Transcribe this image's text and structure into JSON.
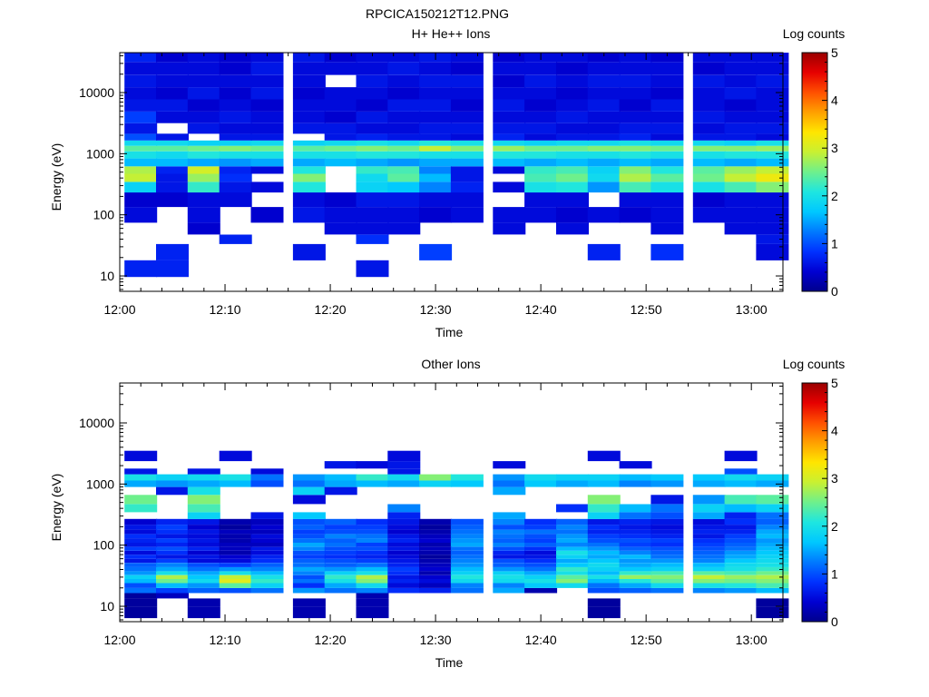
{
  "figure_title": "RPCICA150212T12.PNG",
  "colormap": [
    "#00008c",
    "#0000d2",
    "#0032ff",
    "#007aff",
    "#00c8ff",
    "#1ee6e0",
    "#6ef08c",
    "#c8f032",
    "#ffe600",
    "#ffa000",
    "#ff5000",
    "#e60000",
    "#9a0000"
  ],
  "chart_data": [
    {
      "type": "heatmap",
      "title": "H+ He++ Ions",
      "xlabel": "Time",
      "ylabel": "Energy (eV)",
      "ylog": true,
      "ylim": [
        5.6,
        45000
      ],
      "xlim": [
        "12:00",
        "13:03"
      ],
      "x_ticks": [
        "12:00",
        "12:10",
        "12:20",
        "12:30",
        "12:40",
        "12:50",
        "13:00"
      ],
      "y_ticks": [
        "10",
        "100",
        "1000",
        "10000"
      ],
      "colorbar": {
        "label": "Log counts",
        "range": [
          0,
          5
        ],
        "ticks": [
          "0",
          "1",
          "2",
          "3",
          "4",
          "5"
        ]
      },
      "grid": false,
      "time_columns": [
        "12:02",
        "12:05",
        "12:08",
        "12:11",
        "12:14",
        "12:18",
        "12:21",
        "12:24",
        "12:27",
        "12:30",
        "12:33",
        "12:37",
        "12:40",
        "12:43",
        "12:46",
        "12:49",
        "12:52",
        "12:56",
        "12:59",
        "13:02"
      ],
      "energy_bins_eV": [
        12,
        27,
        41,
        55,
        100,
        180,
        300,
        400,
        550,
        700,
        1000,
        1200,
        1500,
        1800,
        2500,
        4000,
        6000,
        10000,
        15000,
        25000,
        40000
      ],
      "log_counts": [
        [
          0.7,
          0,
          0,
          0,
          0.5,
          0.4,
          1.8,
          2.9,
          2.8,
          1.6,
          2.0,
          2.4,
          1.9,
          1.0,
          0.6,
          0.9,
          0.6,
          0.5,
          0.6,
          0.5,
          0.7
        ],
        [
          0.7,
          0.7,
          0,
          0,
          0,
          0.4,
          0.6,
          0.6,
          0.7,
          1.6,
          1.9,
          2.4,
          1.9,
          0.6,
          0,
          0.5,
          0.6,
          0.4,
          0.5,
          0.5,
          0.4
        ],
        [
          0,
          0,
          0,
          0.4,
          0.5,
          0.5,
          2.2,
          2.7,
          3.0,
          1.5,
          2.1,
          2.5,
          1.8,
          0,
          0.6,
          0.5,
          0.4,
          0.6,
          0.5,
          0.5,
          0.5
        ],
        [
          0,
          0,
          0.7,
          0,
          0,
          0.5,
          0.6,
          0.8,
          0.7,
          1.4,
          2.0,
          2.6,
          1.8,
          0.6,
          0.5,
          0.6,
          0.5,
          0.4,
          0.5,
          0.4,
          0.4
        ],
        [
          0,
          0,
          0,
          0,
          0.4,
          0,
          0.5,
          0,
          0.5,
          1.5,
          2.0,
          2.5,
          1.9,
          0.6,
          0.5,
          0.5,
          0.4,
          0.6,
          0.5,
          0.6,
          0.5
        ],
        [
          0,
          0.6,
          0,
          0,
          0.6,
          0.5,
          2.1,
          2.6,
          2.1,
          1.5,
          2.0,
          2.4,
          1.8,
          0,
          0.6,
          0.5,
          0.5,
          0.4,
          0.5,
          0.5,
          0.6
        ],
        [
          0,
          0,
          0,
          0.5,
          0.5,
          0.4,
          0,
          0,
          0,
          1.6,
          2.0,
          2.5,
          1.9,
          0.6,
          0.6,
          0.4,
          0.5,
          0.5,
          0,
          0.5,
          0.4
        ],
        [
          0.6,
          0,
          0.8,
          0.5,
          0.5,
          0.6,
          1.8,
          1.9,
          2.2,
          1.5,
          2.1,
          2.6,
          2.0,
          0.7,
          0.5,
          0.6,
          0.4,
          0.5,
          0.6,
          0.5,
          0.5
        ],
        [
          0,
          0,
          0,
          0.5,
          0.5,
          0.6,
          1.7,
          2.4,
          2.3,
          1.4,
          2.1,
          2.5,
          1.9,
          0.6,
          0.5,
          0.5,
          0.6,
          0.4,
          0.5,
          0.6,
          0.5
        ],
        [
          0,
          0.9,
          0,
          0,
          0.4,
          0.5,
          1.3,
          1.6,
          1.3,
          1.5,
          2.0,
          2.9,
          2.1,
          0.6,
          0.6,
          0.5,
          0.6,
          0.5,
          0.6,
          0.5,
          0.6
        ],
        [
          0,
          0,
          0,
          0,
          0.5,
          0.5,
          0.7,
          0.6,
          0.6,
          1.5,
          2.0,
          2.6,
          2.0,
          0.5,
          0.6,
          0.5,
          0.4,
          0.5,
          0.6,
          0.4,
          0.5
        ],
        [
          0,
          0,
          0,
          0.5,
          0.5,
          0,
          0.5,
          0,
          0.5,
          1.6,
          2.1,
          2.7,
          1.9,
          0.7,
          0.6,
          0.5,
          0.6,
          0.5,
          0.4,
          0.5,
          0.4
        ],
        [
          0,
          0,
          0,
          0,
          0.5,
          0.5,
          2.0,
          2.3,
          2.2,
          1.5,
          2.1,
          2.5,
          1.8,
          0.5,
          0.6,
          0.5,
          0.4,
          0.5,
          0.6,
          0.5,
          0.5
        ],
        [
          0,
          0,
          0,
          0.5,
          0.4,
          0.5,
          2.1,
          2.5,
          2.3,
          1.6,
          2.0,
          2.5,
          1.9,
          0.6,
          0.5,
          0.6,
          0.5,
          0.4,
          0.5,
          0.4,
          0.5
        ],
        [
          0,
          0.7,
          0,
          0,
          0.5,
          0,
          1.4,
          1.9,
          1.8,
          1.5,
          2.0,
          2.6,
          1.9,
          0.6,
          0.5,
          0.5,
          0.6,
          0.5,
          0.6,
          0.5,
          0.4
        ],
        [
          0,
          0,
          0,
          0,
          0.4,
          0.5,
          2.3,
          2.8,
          2.6,
          1.6,
          2.1,
          2.6,
          2.0,
          0.7,
          0.6,
          0.5,
          0.4,
          0.5,
          0.6,
          0.5,
          0.5
        ],
        [
          0,
          0.8,
          0,
          0.5,
          0.5,
          0.5,
          2.0,
          2.4,
          2.1,
          1.5,
          2.0,
          2.5,
          1.9,
          0.5,
          0.6,
          0.5,
          0.6,
          0.4,
          0.5,
          0.5,
          0.4
        ],
        [
          0,
          0,
          0,
          0,
          0.5,
          0.4,
          2.0,
          2.5,
          2.4,
          1.6,
          2.0,
          2.6,
          1.9,
          0.6,
          0.5,
          0.6,
          0.5,
          0.5,
          0.6,
          0.4,
          0.5
        ],
        [
          0,
          0,
          0,
          0.5,
          0.5,
          0.5,
          2.3,
          2.9,
          2.7,
          1.5,
          2.1,
          2.6,
          1.8,
          0.6,
          0.6,
          0.5,
          0.4,
          0.6,
          0.5,
          0.5,
          0.5
        ],
        [
          0,
          0.5,
          0.6,
          0.5,
          0.5,
          0.5,
          2.6,
          3.2,
          2.9,
          1.6,
          2.1,
          2.7,
          2.0,
          0.5,
          0.6,
          0.5,
          0.5,
          0.5,
          0.6,
          0.5,
          0.5
        ]
      ]
    },
    {
      "type": "heatmap",
      "title": "Other Ions",
      "xlabel": "Time",
      "ylabel": "Energy (eV)",
      "ylog": true,
      "ylim": [
        5.6,
        45000
      ],
      "xlim": [
        "12:00",
        "13:03"
      ],
      "x_ticks": [
        "12:00",
        "12:10",
        "12:20",
        "12:30",
        "12:40",
        "12:50",
        "13:00"
      ],
      "y_ticks": [
        "10",
        "100",
        "1000",
        "10000"
      ],
      "colorbar": {
        "label": "Log counts",
        "range": [
          0,
          5
        ],
        "ticks": [
          "0",
          "1",
          "2",
          "3",
          "4",
          "5"
        ]
      },
      "grid": false,
      "time_columns": [
        "12:02",
        "12:05",
        "12:08",
        "12:11",
        "12:14",
        "12:18",
        "12:21",
        "12:24",
        "12:27",
        "12:30",
        "12:33",
        "12:37",
        "12:40",
        "12:43",
        "12:46",
        "12:49",
        "12:52",
        "12:56",
        "12:59",
        "13:02"
      ],
      "energy_bins_eV": [
        8,
        12,
        15,
        18,
        22,
        26,
        30,
        35,
        40,
        48,
        55,
        65,
        75,
        88,
        100,
        120,
        140,
        165,
        195,
        240,
        300,
        400,
        550,
        800,
        1000,
        1300,
        1600,
        2000,
        2800
      ],
      "log_counts": [
        [
          0.1,
          0.1,
          0.1,
          1.2,
          1.0,
          1.6,
          1.8,
          1.4,
          1.2,
          1.1,
          0.6,
          0.8,
          0.5,
          0.9,
          0.6,
          0.7,
          0.8,
          0.5,
          0.6,
          0.4,
          0,
          2.2,
          2.5,
          0,
          1.5,
          2.0,
          0.6,
          0,
          0.5
        ],
        [
          0,
          0,
          0.3,
          0.9,
          1.6,
          2.5,
          2.8,
          2.0,
          1.5,
          1.3,
          0.9,
          0.6,
          0.8,
          1.0,
          0.7,
          0.9,
          0.6,
          0.8,
          0.9,
          0.7,
          0,
          0,
          0,
          0.6,
          1.4,
          1.8,
          0,
          0,
          0
        ],
        [
          0.2,
          0.2,
          0,
          1.1,
          1.4,
          1.9,
          1.7,
          1.5,
          1.2,
          1.0,
          0.5,
          0.6,
          0.4,
          0.7,
          0.5,
          0.6,
          0.5,
          0.6,
          0.4,
          0.6,
          1.8,
          2.3,
          2.6,
          2.0,
          1.5,
          1.9,
          0.6,
          0,
          0
        ],
        [
          0,
          0,
          0,
          1.0,
          2.4,
          3.1,
          2.9,
          2.0,
          1.4,
          0.9,
          0.5,
          0.4,
          0.2,
          0.3,
          0.3,
          0.2,
          0.2,
          0.3,
          0.1,
          0.2,
          0,
          0,
          0,
          0,
          1.6,
          2.0,
          0,
          0,
          0.5
        ],
        [
          0,
          0,
          0,
          1.2,
          1.8,
          2.2,
          2.0,
          1.6,
          1.3,
          1.1,
          0.8,
          0.7,
          0.5,
          0.6,
          0.3,
          0.4,
          0.5,
          0.3,
          0.4,
          0.3,
          0.6,
          0,
          0,
          0,
          1.0,
          1.2,
          0.5,
          0,
          0
        ],
        [
          0.2,
          0.2,
          0,
          1.4,
          0.8,
          1.2,
          1.0,
          1.3,
          1.5,
          1.2,
          1.1,
          0.9,
          1.0,
          1.3,
          1.5,
          1.2,
          1.0,
          0.9,
          1.1,
          1.0,
          1.7,
          0,
          0.5,
          1.8,
          1.2,
          1.4,
          0,
          0,
          0
        ],
        [
          0,
          0,
          0,
          1.2,
          1.5,
          2.0,
          2.2,
          1.8,
          1.4,
          1.1,
          1.0,
          0.8,
          0.9,
          1.0,
          1.2,
          1.1,
          1.3,
          1.0,
          0.9,
          1.1,
          0,
          0,
          0,
          0.6,
          1.5,
          1.6,
          0,
          0.6,
          0
        ],
        [
          0.2,
          0.2,
          0.2,
          1.3,
          1.9,
          2.6,
          2.8,
          2.0,
          1.6,
          1.2,
          0.9,
          0.7,
          0.8,
          1.0,
          0.9,
          1.3,
          1.2,
          1.0,
          0.9,
          0.8,
          0,
          0,
          0,
          0,
          1.6,
          2.2,
          0,
          0.5,
          0
        ],
        [
          0,
          0,
          0,
          0.8,
          0.5,
          0.7,
          0.6,
          0.8,
          0.9,
          0.7,
          0.6,
          0.5,
          0.4,
          0.6,
          0.5,
          0.7,
          0.6,
          0.4,
          0.5,
          0.6,
          0.7,
          1.3,
          0,
          0,
          1.5,
          1.9,
          0.6,
          0.6,
          0.5
        ],
        [
          0,
          0,
          0,
          0.7,
          0.3,
          0.5,
          0.4,
          0.2,
          0.4,
          0.3,
          0.2,
          0.1,
          0.2,
          0.3,
          0.2,
          0.4,
          0.3,
          0.2,
          0.1,
          0.2,
          0,
          0,
          0,
          0,
          1.8,
          2.6,
          0,
          0,
          0
        ],
        [
          0,
          0,
          0,
          1.2,
          1.3,
          1.9,
          2.1,
          1.8,
          1.6,
          1.4,
          1.3,
          1.2,
          1.1,
          1.2,
          1.5,
          1.4,
          1.3,
          1.2,
          1.1,
          1.0,
          0,
          0,
          0,
          0,
          1.7,
          2.1,
          0,
          0,
          0
        ],
        [
          0,
          0,
          0,
          1.5,
          1.3,
          1.9,
          2.0,
          1.8,
          1.4,
          1.1,
          1.0,
          0.6,
          0.7,
          1.0,
          1.3,
          1.1,
          1.2,
          1.3,
          1.0,
          1.3,
          1.5,
          0,
          0,
          1.5,
          1.2,
          1.4,
          0,
          0.5,
          0
        ],
        [
          0,
          0,
          0,
          0.2,
          1.7,
          2.0,
          1.8,
          1.5,
          1.2,
          1.0,
          0.8,
          0.6,
          0.5,
          0.8,
          1.1,
          0.9,
          1.0,
          1.2,
          0.9,
          0.8,
          0,
          0,
          0,
          0,
          1.7,
          1.9,
          0,
          0,
          0
        ],
        [
          0,
          0,
          0,
          0,
          1.9,
          2.6,
          2.4,
          2.0,
          2.2,
          1.7,
          1.5,
          1.8,
          2.0,
          1.6,
          1.3,
          1.5,
          1.4,
          1.2,
          1.3,
          1.1,
          0,
          0.8,
          0,
          0,
          1.5,
          1.8,
          0,
          0,
          0
        ],
        [
          0.1,
          0.1,
          0,
          1.0,
          1.2,
          1.6,
          2.0,
          1.6,
          1.8,
          1.9,
          1.7,
          1.5,
          1.6,
          1.4,
          1.2,
          1.0,
          0.9,
          0.7,
          0.8,
          0.6,
          1.8,
          2.2,
          2.6,
          0,
          1.6,
          1.8,
          0,
          0,
          0.5
        ],
        [
          0,
          0,
          0,
          1.1,
          1.5,
          2.1,
          2.7,
          2.2,
          1.7,
          1.5,
          1.4,
          1.6,
          1.3,
          1.1,
          0.9,
          1.0,
          0.8,
          0.7,
          0.6,
          0.7,
          1.2,
          1.6,
          0,
          0,
          1.3,
          1.6,
          0,
          0.5,
          0
        ],
        [
          0,
          0,
          0,
          1.2,
          1.9,
          2.4,
          2.6,
          2.3,
          1.8,
          1.6,
          1.4,
          1.2,
          1.1,
          1.0,
          0.8,
          0.9,
          0.7,
          0.6,
          0.5,
          0.6,
          1.0,
          1.2,
          0.6,
          0,
          1.4,
          1.7,
          0,
          0,
          0
        ],
        [
          0,
          0,
          0,
          1.3,
          2.0,
          2.6,
          2.9,
          2.4,
          1.8,
          1.6,
          1.3,
          1.2,
          1.1,
          1.0,
          0.9,
          0.8,
          0.6,
          0.7,
          0.6,
          0.5,
          1.5,
          1.8,
          1.4,
          0,
          1.5,
          1.7,
          0,
          0,
          0
        ],
        [
          0,
          0,
          0,
          1.4,
          2.1,
          2.5,
          2.7,
          2.3,
          2.0,
          1.9,
          1.7,
          1.5,
          1.4,
          1.2,
          1.1,
          1.0,
          0.9,
          0.7,
          0.6,
          0.8,
          0.7,
          1.6,
          2.3,
          0,
          1.6,
          1.9,
          1.0,
          0,
          0.5
        ],
        [
          0.1,
          0.1,
          0,
          1.6,
          2.3,
          2.6,
          2.8,
          2.5,
          2.2,
          2.0,
          1.9,
          1.8,
          1.7,
          1.6,
          1.5,
          1.4,
          1.6,
          1.5,
          1.3,
          1.1,
          1.2,
          1.8,
          2.4,
          0,
          1.5,
          1.8,
          0,
          0,
          0
        ]
      ]
    }
  ]
}
